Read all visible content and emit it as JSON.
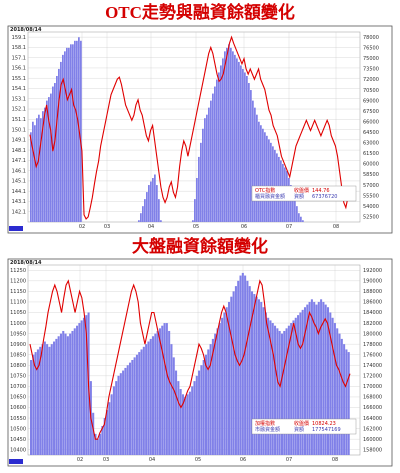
{
  "titles": [
    "OTC走勢與融資餘額變化",
    "大盤融資餘額變化"
  ],
  "chart_data": [
    {
      "type": "bar+line",
      "title": "OTC走勢與融資餘額變化",
      "date": "2018/08/14",
      "x_tick_labels": [
        "02",
        "03",
        "04",
        "05",
        "06",
        "07",
        "08"
      ],
      "left_axis_labels": [
        "159.1",
        "158.1",
        "157.1",
        "156.1",
        "155.1",
        "154.1",
        "153.1",
        "152.1",
        "151.1",
        "150.1",
        "149.1",
        "148.1",
        "147.1",
        "146.1",
        "145.1",
        "144.1",
        "143.1",
        "142.1"
      ],
      "right_axis_labels": [
        "78000",
        "76500",
        "75000",
        "73500",
        "72000",
        "70500",
        "69000",
        "67500",
        "66000",
        "64500",
        "63000",
        "61500",
        "60000",
        "58500",
        "57000",
        "55500",
        "54000",
        "52500"
      ],
      "left_ylim": [
        141.1,
        159.6
      ],
      "right_ylim": [
        51750,
        78750
      ],
      "bars": {
        "name": "櫃買融資餘額",
        "color": "#8080e8",
        "values": [
          64.5,
          66.0,
          65.5,
          66.5,
          67.0,
          66.5,
          67.5,
          68.0,
          69.0,
          69.5,
          70.0,
          71.0,
          71.5,
          72.5,
          73.5,
          74.5,
          75.5,
          76.0,
          76.5,
          76.5,
          77.0,
          77.0,
          77.5,
          77.5,
          78.0,
          77.5,
          4.0,
          4.0,
          4.0,
          5.0,
          7.0,
          9.0,
          12.0,
          15.0,
          18.0,
          21.0,
          24.0,
          27.0,
          30.0,
          32.0,
          34.0,
          36.0,
          38.0,
          40.0,
          42.0,
          43.0,
          44.0,
          45.0,
          46.0,
          47.0,
          48.0,
          49.0,
          50.0,
          51.0,
          52.0,
          53.0,
          54.0,
          55.0,
          56.0,
          57.0,
          57.5,
          58.0,
          58.5,
          57.0,
          55.0,
          52.0,
          48.0,
          44.0,
          40.0,
          36.0,
          33.0,
          31.0,
          30.0,
          30.5,
          32.0,
          34.0,
          37.0,
          40.0,
          43.0,
          46.0,
          49.0,
          52.0,
          55.0,
          58.0,
          61.0,
          63.0,
          65.0,
          66.5,
          67.0,
          68.0,
          69.0,
          70.0,
          71.0,
          72.0,
          73.0,
          74.0,
          75.0,
          76.0,
          76.5,
          77.0,
          76.5,
          76.0,
          75.5,
          75.0,
          74.5,
          74.0,
          73.5,
          73.0,
          72.5,
          71.5,
          70.5,
          69.0,
          68.0,
          67.0,
          66.0,
          65.5,
          65.0,
          64.5,
          64.0,
          63.5,
          63.0,
          62.5,
          62.0,
          61.5,
          61.0,
          60.5,
          60.0,
          59.5,
          59.0,
          58.0,
          57.0,
          56.0,
          55.0,
          54.0,
          53.0,
          52.5,
          52.0,
          51.5,
          51.0,
          50.5,
          50.0,
          49.0,
          48.0,
          46.0,
          44.0,
          42.0,
          40.0,
          38.0,
          36.0,
          34.0,
          32.0,
          30.0,
          28.0,
          26.0,
          24.0,
          20.0,
          14.0,
          9.0,
          7.0,
          6.5
        ]
      },
      "line": {
        "name": "OTC指數",
        "color": "#e00000",
        "values": [
          149.6,
          148.5,
          147.5,
          146.5,
          147.0,
          148.5,
          150.0,
          151.5,
          152.5,
          151.0,
          150.0,
          148.0,
          149.0,
          151.0,
          153.0,
          154.5,
          155.0,
          154.0,
          153.0,
          153.5,
          154.0,
          152.5,
          152.0,
          151.0,
          149.5,
          148.0,
          141.8,
          141.4,
          141.6,
          142.5,
          143.5,
          144.8,
          146.0,
          147.0,
          148.5,
          149.5,
          150.5,
          151.5,
          152.5,
          153.5,
          154.0,
          154.5,
          155.0,
          155.2,
          154.5,
          153.5,
          152.5,
          152.0,
          151.5,
          151.0,
          151.5,
          152.5,
          153.0,
          152.0,
          151.5,
          150.5,
          149.5,
          149.0,
          150.0,
          150.5,
          149.0,
          147.5,
          146.0,
          144.5,
          143.5,
          143.0,
          143.5,
          144.5,
          145.0,
          144.0,
          143.5,
          144.5,
          146.5,
          148.0,
          149.0,
          148.5,
          147.5,
          148.5,
          149.5,
          150.5,
          151.5,
          152.5,
          153.5,
          154.5,
          155.5,
          156.5,
          157.5,
          158.1,
          157.5,
          156.5,
          155.5,
          154.8,
          155.0,
          155.5,
          156.5,
          157.5,
          158.5,
          159.1,
          158.5,
          158.0,
          157.5,
          157.0,
          156.5,
          157.0,
          156.0,
          155.5,
          156.0,
          155.5,
          155.0,
          155.5,
          156.0,
          155.0,
          154.5,
          154.0,
          153.0,
          152.0,
          151.5,
          150.5,
          150.0,
          149.5,
          148.5,
          147.5,
          147.0,
          146.5,
          146.0,
          145.5,
          146.5,
          147.5,
          148.5,
          149.0,
          149.5,
          150.0,
          150.5,
          151.0,
          150.5,
          150.0,
          150.5,
          151.0,
          150.5,
          150.0,
          149.5,
          150.0,
          150.5,
          151.0,
          150.5,
          149.5,
          149.0,
          148.5,
          147.5,
          146.0,
          144.5,
          143.0,
          142.5,
          143.5,
          144.5
        ]
      },
      "legend": [
        {
          "label": "OTC指數",
          "value_label": "收盤價",
          "value": "144.76"
        },
        {
          "label": "櫃買融資金額",
          "value_label": "資額",
          "value": "67376720"
        }
      ]
    },
    {
      "type": "bar+line",
      "title": "大盤融資餘額變化",
      "date": "2018/08/14",
      "x_tick_labels": [
        "02",
        "03",
        "04",
        "05",
        "06",
        "07",
        "08"
      ],
      "left_axis_labels": [
        "11250",
        "11200",
        "11150",
        "11100",
        "11050",
        "11000",
        "10950",
        "10900",
        "10850",
        "10800",
        "10750",
        "10700",
        "10650",
        "10600",
        "10550",
        "10500",
        "10450",
        "10400"
      ],
      "right_axis_labels": [
        "192000",
        "190000",
        "188000",
        "186000",
        "184000",
        "182000",
        "180000",
        "178000",
        "176000",
        "174000",
        "172000",
        "170000",
        "168000",
        "166000",
        "164000",
        "162000",
        "160000",
        "158000"
      ],
      "left_ylim": [
        10375,
        11275
      ],
      "right_ylim": [
        157000,
        193000
      ],
      "bars": {
        "name": "市融資金額",
        "color": "#8080e8",
        "values": [
          175.0,
          176.0,
          176.5,
          177.0,
          177.5,
          178.0,
          178.5,
          178.0,
          177.5,
          178.0,
          178.5,
          179.0,
          179.5,
          180.0,
          180.5,
          180.0,
          179.5,
          180.0,
          180.5,
          181.0,
          181.5,
          182.0,
          182.5,
          183.0,
          183.5,
          184.0,
          171.0,
          165.0,
          161.0,
          160.0,
          161.0,
          162.5,
          164.0,
          165.5,
          167.0,
          168.5,
          170.0,
          171.0,
          172.0,
          172.5,
          173.0,
          173.5,
          174.0,
          174.5,
          175.0,
          175.5,
          176.0,
          176.5,
          177.0,
          177.5,
          178.0,
          178.5,
          179.0,
          179.5,
          180.0,
          180.5,
          181.0,
          181.5,
          182.0,
          182.0,
          180.5,
          178.0,
          175.5,
          173.0,
          171.0,
          169.5,
          168.5,
          168.0,
          168.5,
          169.0,
          170.0,
          171.0,
          172.0,
          173.0,
          174.0,
          175.0,
          176.0,
          177.0,
          178.0,
          179.0,
          180.0,
          181.0,
          182.0,
          183.0,
          184.0,
          185.0,
          186.0,
          187.0,
          188.0,
          189.0,
          190.0,
          191.0,
          191.5,
          191.0,
          190.0,
          189.0,
          188.0,
          187.5,
          187.0,
          186.5,
          186.0,
          185.0,
          184.0,
          183.0,
          182.5,
          182.0,
          181.5,
          181.0,
          180.5,
          180.0,
          180.5,
          181.0,
          181.5,
          182.0,
          182.5,
          183.0,
          183.5,
          184.0,
          184.5,
          185.0,
          185.5,
          186.0,
          186.5,
          186.0,
          185.5,
          186.0,
          186.5,
          186.0,
          185.5,
          185.0,
          184.0,
          183.0,
          182.0,
          181.0,
          180.0,
          179.0,
          178.0,
          177.0,
          176.5
        ]
      },
      "line": {
        "name": "加權指數",
        "color": "#e00000",
        "values": [
          10900,
          10850,
          10800,
          10780,
          10800,
          10850,
          10920,
          10980,
          11050,
          11100,
          11150,
          11180,
          11150,
          11100,
          11050,
          11120,
          11180,
          11200,
          11150,
          11100,
          11050,
          11100,
          11150,
          11120,
          11050,
          10950,
          10700,
          10550,
          10500,
          10450,
          10450,
          10480,
          10500,
          10520,
          10580,
          10650,
          10700,
          10750,
          10800,
          10850,
          10900,
          10950,
          11000,
          11050,
          11100,
          11150,
          11180,
          11150,
          11100,
          11000,
          10950,
          10900,
          10950,
          11000,
          11050,
          11050,
          11000,
          10950,
          10900,
          10850,
          10800,
          10750,
          10720,
          10700,
          10680,
          10650,
          10620,
          10600,
          10620,
          10650,
          10680,
          10700,
          10750,
          10800,
          10850,
          10900,
          10880,
          10850,
          10800,
          10780,
          10800,
          10850,
          10900,
          10950,
          11000,
          11050,
          11080,
          11050,
          11000,
          10950,
          10900,
          10850,
          10820,
          10800,
          10820,
          10850,
          10900,
          10950,
          11000,
          11050,
          11100,
          11150,
          11200,
          11180,
          11100,
          11000,
          10950,
          10900,
          10850,
          10780,
          10720,
          10700,
          10750,
          10800,
          10850,
          10900,
          10950,
          11000,
          10950,
          10900,
          10880,
          10900,
          10950,
          11000,
          11050,
          11030,
          11000,
          10980,
          10950,
          10980,
          11000,
          11020,
          11000,
          10950,
          10900,
          10850,
          10800,
          10780,
          10750,
          10720,
          10700,
          10730,
          10760
        ]
      },
      "legend": [
        {
          "label": "加權指數",
          "value_label": "收盤價",
          "value": "10824.23"
        },
        {
          "label": "市融資金額",
          "value_label": "資額",
          "value": "177547169"
        }
      ]
    }
  ]
}
